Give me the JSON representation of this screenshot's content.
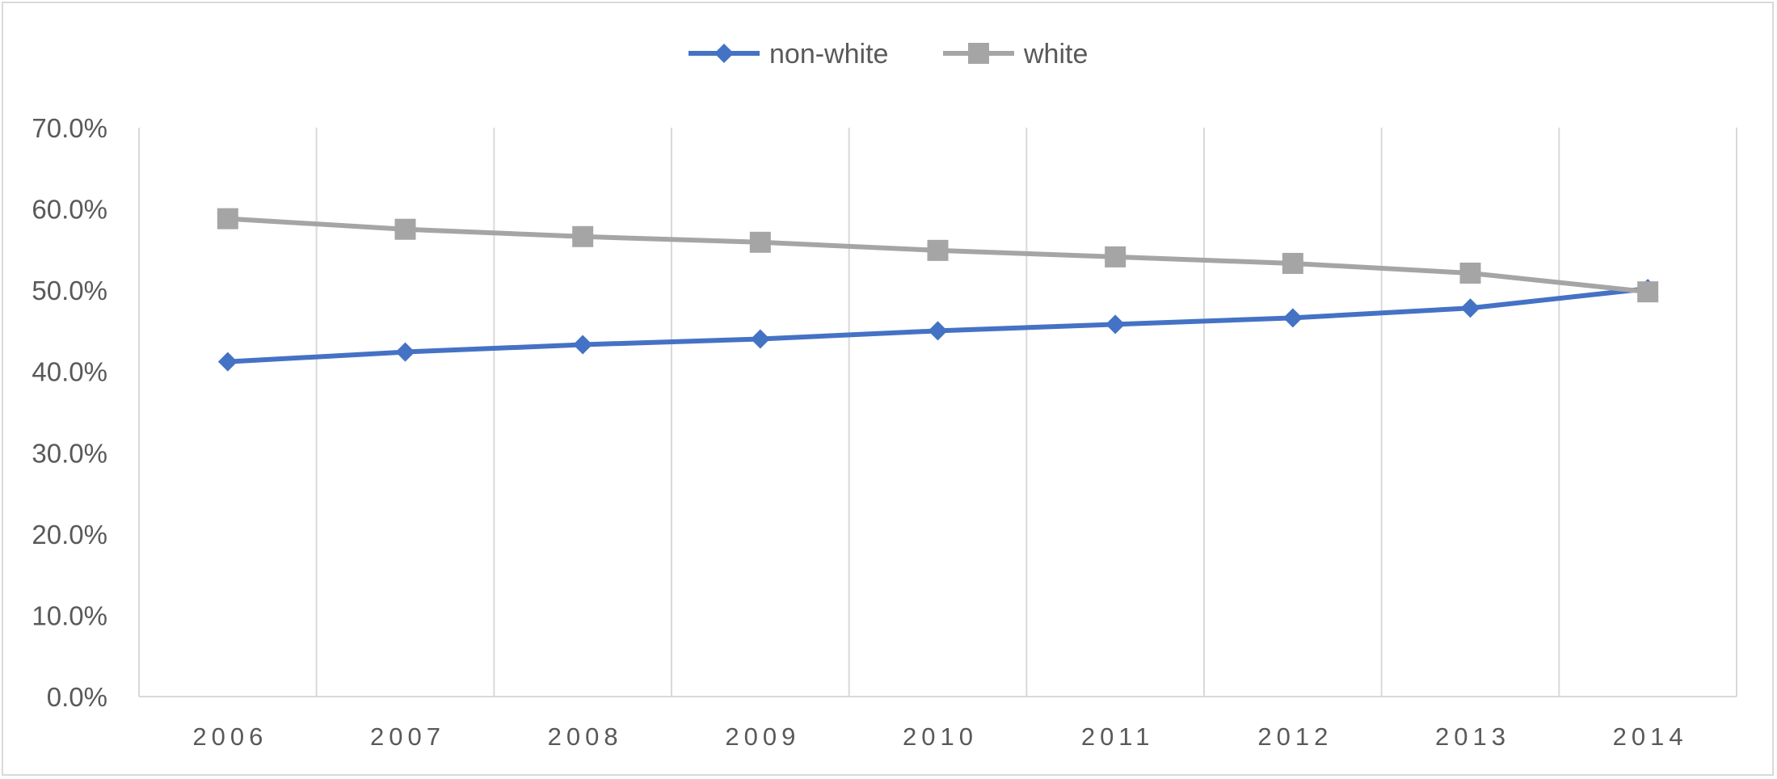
{
  "chart_data": {
    "type": "line",
    "title": "",
    "xlabel": "",
    "ylabel": "",
    "categories": [
      "2006",
      "2007",
      "2008",
      "2009",
      "2010",
      "2011",
      "2012",
      "2013",
      "2014"
    ],
    "ylim": [
      0,
      0.7
    ],
    "yticks": [
      0,
      0.1,
      0.2,
      0.3,
      0.4,
      0.5,
      0.6,
      0.7
    ],
    "ytick_labels": [
      "0.0%",
      "10.0%",
      "20.0%",
      "30.0%",
      "40.0%",
      "50.0%",
      "60.0%",
      "70.0%"
    ],
    "grid": "vertical",
    "legend": "top-center",
    "series": [
      {
        "name": "non-white",
        "marker": "diamond",
        "color": "#4472C4",
        "values": [
          0.412,
          0.424,
          0.433,
          0.44,
          0.45,
          0.458,
          0.466,
          0.478,
          0.502
        ]
      },
      {
        "name": "white",
        "marker": "square",
        "color": "#A5A5A5",
        "values": [
          0.588,
          0.575,
          0.566,
          0.559,
          0.549,
          0.541,
          0.533,
          0.521,
          0.498
        ]
      }
    ]
  }
}
